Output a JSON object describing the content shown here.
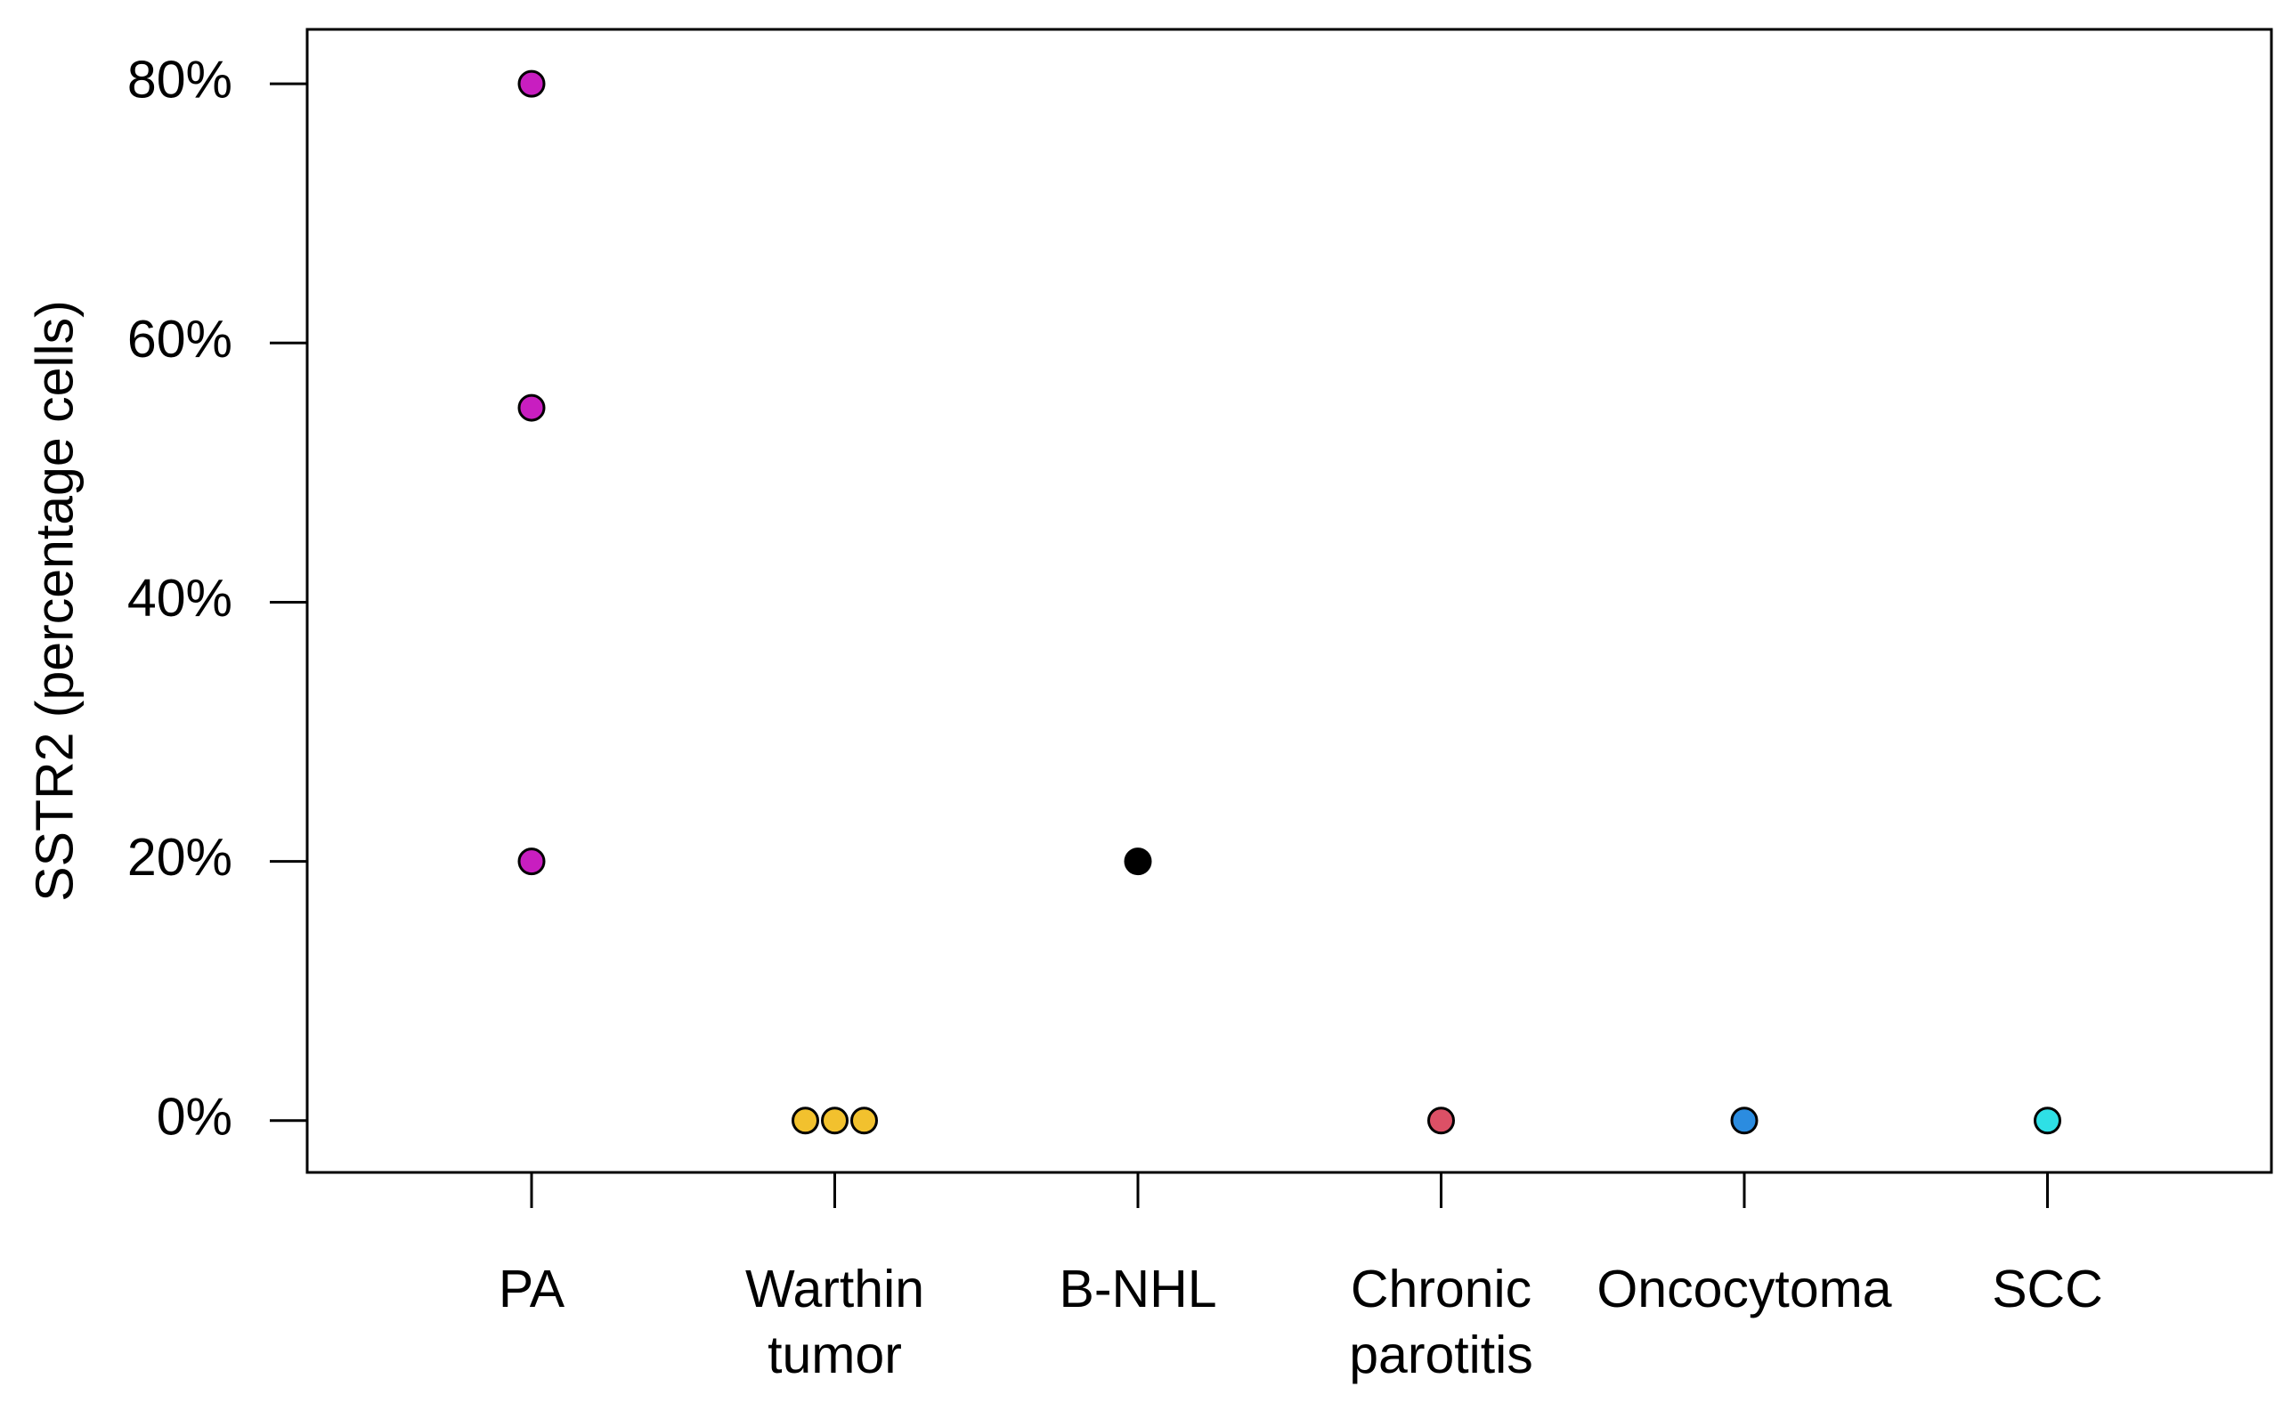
{
  "chart_data": {
    "type": "strip",
    "y_label": "SSTR2 (percentage cells)",
    "categories": [
      "PA",
      "Warthin\ntumor",
      "B-NHL",
      "Chronic\nparotitis",
      "Oncocytoma",
      "SCC"
    ],
    "values": [
      [
        80,
        55,
        20
      ],
      [
        0,
        0,
        0
      ],
      [
        20
      ],
      [
        0
      ],
      [
        0
      ],
      [
        0
      ]
    ],
    "colors": [
      "#c81ec0",
      "#f2c12e",
      "#000000",
      "#dc5066",
      "#2b8ce0",
      "#2ee0e6"
    ],
    "ylim": [
      -4,
      84.2
    ],
    "yticks": [
      {
        "value": 0,
        "label": "0%"
      },
      {
        "value": 20,
        "label": "20%"
      },
      {
        "value": 40,
        "label": "40%"
      },
      {
        "value": 60,
        "label": "60%"
      },
      {
        "value": 80,
        "label": "80%"
      }
    ]
  }
}
